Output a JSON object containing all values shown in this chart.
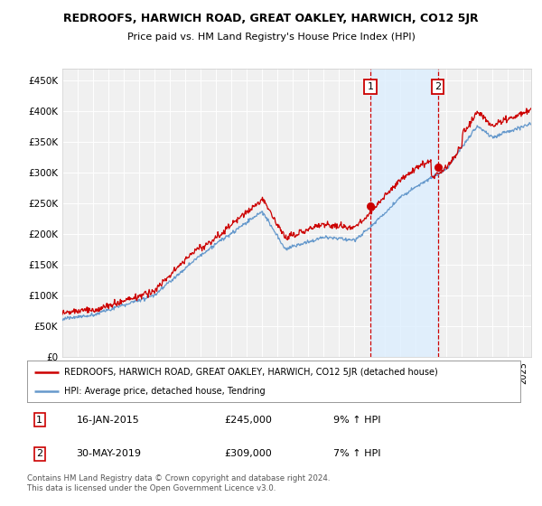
{
  "title": "REDROOFS, HARWICH ROAD, GREAT OAKLEY, HARWICH, CO12 5JR",
  "subtitle": "Price paid vs. HM Land Registry's House Price Index (HPI)",
  "ylabel_ticks": [
    "£0",
    "£50K",
    "£100K",
    "£150K",
    "£200K",
    "£250K",
    "£300K",
    "£350K",
    "£400K",
    "£450K"
  ],
  "ytick_values": [
    0,
    50000,
    100000,
    150000,
    200000,
    250000,
    300000,
    350000,
    400000,
    450000
  ],
  "ylim": [
    0,
    470000
  ],
  "xlim_start": 1995.0,
  "xlim_end": 2025.5,
  "hpi_color": "#6699cc",
  "price_color": "#cc0000",
  "marker1_date": 2015.04,
  "marker2_date": 2019.42,
  "marker1_price": 245000,
  "marker2_price": 309000,
  "marker1_label": "16-JAN-2015",
  "marker1_amount": "£245,000",
  "marker1_pct": "9% ↑ HPI",
  "marker2_label": "30-MAY-2019",
  "marker2_amount": "£309,000",
  "marker2_pct": "7% ↑ HPI",
  "legend_line1": "REDROOFS, HARWICH ROAD, GREAT OAKLEY, HARWICH, CO12 5JR (detached house)",
  "legend_line2": "HPI: Average price, detached house, Tendring",
  "footnote": "Contains HM Land Registry data © Crown copyright and database right 2024.\nThis data is licensed under the Open Government Licence v3.0.",
  "background_color": "#ffffff",
  "plot_bg_color": "#f0f0f0",
  "shade_color": "#ddeeff"
}
